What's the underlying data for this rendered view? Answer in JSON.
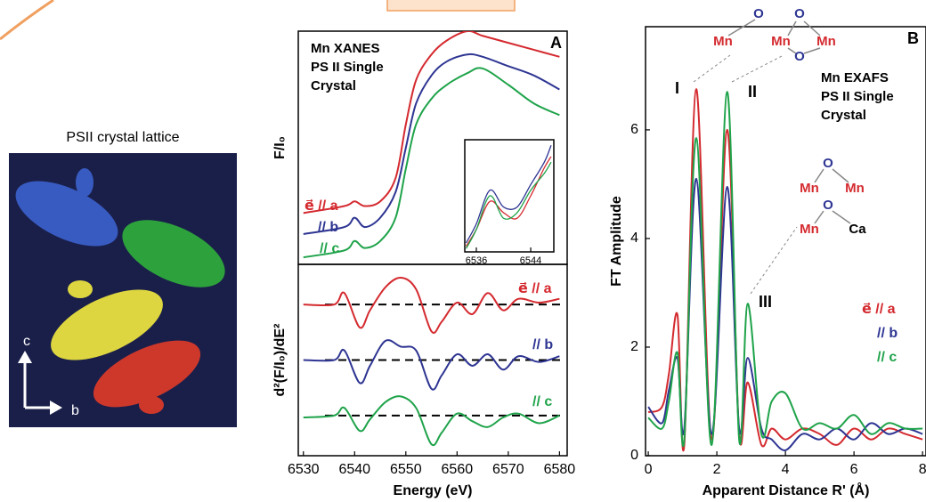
{
  "figure": {
    "lattice_title": "PSII crystal lattice",
    "axis_c": "c",
    "axis_b": "b"
  },
  "chart_data": [
    {
      "type": "line",
      "label": "A",
      "annotation": [
        "Mn XANES",
        "PS II Single",
        "Crystal"
      ],
      "ylabel": "F/I₀",
      "xlim": [
        6529,
        6581.5
      ],
      "ylim": [
        0,
        1
      ],
      "x": [
        6530,
        6538,
        6540,
        6542,
        6545,
        6548,
        6550,
        6552,
        6555,
        6558,
        6562,
        6565,
        6570,
        6575,
        6580
      ],
      "series": [
        {
          "name": "e⃗ // a",
          "color": "#d42a2f",
          "values": [
            0.22,
            0.25,
            0.27,
            0.25,
            0.27,
            0.37,
            0.6,
            0.79,
            0.9,
            0.96,
            1.0,
            0.98,
            0.95,
            0.92,
            0.89
          ]
        },
        {
          "name": "// b",
          "color": "#2e3592",
          "values": [
            0.13,
            0.16,
            0.2,
            0.16,
            0.2,
            0.31,
            0.5,
            0.69,
            0.81,
            0.87,
            0.9,
            0.89,
            0.85,
            0.81,
            0.75
          ]
        },
        {
          "name": "// c",
          "color": "#1fa34a",
          "values": [
            0.03,
            0.06,
            0.1,
            0.07,
            0.1,
            0.2,
            0.41,
            0.6,
            0.71,
            0.77,
            0.82,
            0.84,
            0.77,
            0.69,
            0.64
          ]
        }
      ]
    },
    {
      "type": "line",
      "xlim": [
        6534.3,
        6547.4
      ],
      "xticks": [
        6536,
        6544
      ],
      "ylim": [
        0,
        1
      ],
      "x": [
        6534.5,
        6536,
        6538,
        6540,
        6542,
        6544,
        6546,
        6547
      ],
      "series": [
        {
          "color": "#d42a2f",
          "values": [
            0.05,
            0.2,
            0.45,
            0.35,
            0.3,
            0.5,
            0.75,
            0.85
          ]
        },
        {
          "color": "#2e3592",
          "values": [
            0.08,
            0.25,
            0.55,
            0.4,
            0.4,
            0.6,
            0.8,
            0.95
          ]
        },
        {
          "color": "#1fa34a",
          "values": [
            0.03,
            0.2,
            0.5,
            0.3,
            0.35,
            0.55,
            0.7,
            0.8
          ]
        }
      ]
    },
    {
      "type": "line",
      "ylabel": "d²(F/I₀)/dE²",
      "xlabel": "Energy (eV)",
      "xlim": [
        6529,
        6581.5
      ],
      "xticks": [
        6530,
        6540,
        6550,
        6560,
        6570,
        6580
      ],
      "ylim": [
        0,
        1
      ],
      "reference_lines": [
        0.79,
        0.5,
        0.21
      ],
      "x": [
        6530,
        6536,
        6538,
        6541,
        6543,
        6546,
        6549,
        6552,
        6555,
        6557,
        6560,
        6563,
        6566,
        6569,
        6572,
        6576,
        6580
      ],
      "series": [
        {
          "name": "e⃗ // a",
          "color": "#d42a2f",
          "values": [
            0.79,
            0.79,
            0.85,
            0.67,
            0.76,
            0.88,
            0.93,
            0.87,
            0.65,
            0.7,
            0.8,
            0.74,
            0.85,
            0.76,
            0.82,
            0.8,
            0.82
          ]
        },
        {
          "name": "// b",
          "color": "#2e3592",
          "values": [
            0.5,
            0.5,
            0.55,
            0.38,
            0.47,
            0.6,
            0.57,
            0.55,
            0.35,
            0.42,
            0.53,
            0.47,
            0.53,
            0.45,
            0.52,
            0.49,
            0.52
          ]
        },
        {
          "name": "// c",
          "color": "#1fa34a",
          "values": [
            0.2,
            0.21,
            0.25,
            0.13,
            0.19,
            0.28,
            0.31,
            0.25,
            0.06,
            0.12,
            0.22,
            0.18,
            0.15,
            0.2,
            0.22,
            0.17,
            0.21
          ]
        }
      ]
    },
    {
      "type": "line",
      "label": "B",
      "annotation": [
        "Mn EXAFS",
        "PS II Single",
        "Crystal"
      ],
      "ylabel": "FT Amplitude",
      "xlabel": "Apparent Distance R' (Å)",
      "xlim": [
        -0.08,
        8.1
      ],
      "xticks": [
        0,
        2,
        4,
        6,
        8
      ],
      "ylim": [
        0,
        7.9
      ],
      "yticks": [
        0,
        2,
        4,
        6
      ],
      "peak_labels": [
        "I",
        "II",
        "III"
      ],
      "structure_labels": [
        "Mn",
        "O",
        "Mn",
        "O",
        "Mn",
        "O",
        "O",
        "Mn",
        "Mn",
        "O",
        "Mn",
        "Ca"
      ],
      "x": [
        0,
        0.4,
        0.6,
        0.85,
        1.05,
        1.4,
        1.85,
        2.3,
        2.65,
        2.9,
        3.3,
        3.6,
        4.0,
        4.5,
        5,
        5.5,
        6,
        6.5,
        7,
        7.5,
        8
      ],
      "series": [
        {
          "name": "e⃗ // a",
          "color": "#d42a2f",
          "values": [
            0.8,
            0.9,
            1.5,
            2.6,
            0.2,
            6.75,
            0.3,
            6.0,
            0.4,
            1.35,
            0.2,
            0.5,
            0.3,
            0.5,
            0.4,
            0.2,
            0.5,
            0.3,
            0.5,
            0.4,
            0.3
          ]
        },
        {
          "name": "// b",
          "color": "#2e3592",
          "values": [
            0.9,
            0.6,
            1.2,
            1.8,
            0.5,
            5.1,
            0.4,
            4.95,
            0.5,
            1.8,
            0.5,
            0.3,
            0.1,
            0.4,
            0.3,
            0.5,
            0.3,
            0.6,
            0.4,
            0.5,
            0.4
          ]
        },
        {
          "name": "// c",
          "color": "#1fa34a",
          "values": [
            0.7,
            0.5,
            1.0,
            1.9,
            0.3,
            5.85,
            0.2,
            6.7,
            0.3,
            2.8,
            0.4,
            1.0,
            1.15,
            0.5,
            0.6,
            0.5,
            0.75,
            0.4,
            0.6,
            0.5,
            0.5
          ]
        }
      ]
    }
  ]
}
